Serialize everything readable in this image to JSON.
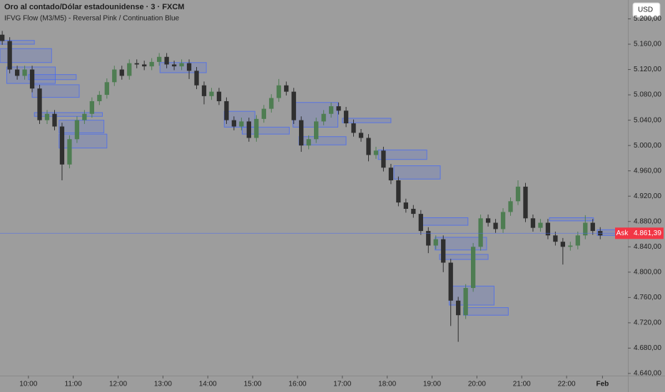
{
  "chart_data": {
    "type": "candlestick",
    "title": "Oro al contado/Dólar estadounidense · 3 · FXCM",
    "subtitle": "IFVG Flow (M3/M5) - Reversal Pink / Continuation Blue",
    "currency": "USD",
    "up_color": "#4e7d52",
    "down_color": "#2f2f2f",
    "zone_color": "#4a6cf0",
    "x": [
      565,
      575,
      585,
      595,
      605,
      615,
      625,
      635,
      645,
      655,
      665,
      675,
      685,
      695,
      705,
      715,
      725,
      735,
      745,
      755,
      765,
      775,
      785,
      795,
      805,
      815,
      825,
      835,
      845,
      855,
      865,
      875,
      885,
      895,
      905,
      915,
      925,
      935,
      945,
      955,
      965,
      975,
      985,
      995,
      1005,
      1015,
      1025,
      1035,
      1045,
      1055,
      1065,
      1075,
      1085,
      1095,
      1105,
      1115,
      1125,
      1135,
      1145,
      1155,
      1165,
      1175,
      1185,
      1195,
      1205,
      1215,
      1225,
      1235,
      1245,
      1255,
      1265,
      1275,
      1285,
      1295,
      1305,
      1315,
      1325,
      1335,
      1345,
      1355,
      1365
    ],
    "open": [
      5175,
      5165,
      5120,
      5110,
      5120,
      5090,
      5040,
      5050,
      5030,
      4970,
      5010,
      5040,
      5050,
      5070,
      5080,
      5100,
      5120,
      5110,
      5130,
      5128,
      5125,
      5132,
      5140,
      5128,
      5125,
      5130,
      5118,
      5095,
      5078,
      5085,
      5070,
      5040,
      5030,
      5038,
      5012,
      5042,
      5058,
      5075,
      5095,
      5085,
      5040,
      5000,
      5010,
      5038,
      5050,
      5062,
      5055,
      5035,
      5020,
      5012,
      4985,
      4992,
      4965,
      4945,
      4910,
      4900,
      4892,
      4865,
      4842,
      4852,
      4815,
      4755,
      4732,
      4775,
      4840,
      4885,
      4878,
      4868,
      4895,
      4912,
      4935,
      4885,
      4870,
      4878,
      4858,
      4848,
      4840,
      4842,
      4858,
      4878,
      4865
    ],
    "high": [
      5181,
      5171,
      5126,
      5126,
      5126,
      5096,
      5056,
      5056,
      5036,
      5016,
      5046,
      5056,
      5076,
      5086,
      5106,
      5126,
      5126,
      5136,
      5136,
      5134,
      5138,
      5146,
      5146,
      5134,
      5136,
      5136,
      5124,
      5101,
      5091,
      5091,
      5076,
      5046,
      5044,
      5044,
      5048,
      5064,
      5081,
      5105,
      5101,
      5091,
      5046,
      5016,
      5044,
      5056,
      5068,
      5068,
      5061,
      5041,
      5026,
      5018,
      4998,
      4998,
      4971,
      4951,
      4916,
      4906,
      4898,
      4871,
      4858,
      4858,
      4821,
      4761,
      4781,
      4846,
      4891,
      4891,
      4884,
      4901,
      4918,
      4945,
      4941,
      4891,
      4884,
      4884,
      4864,
      4854,
      4848,
      4864,
      4890,
      4884,
      4871
    ],
    "low": [
      5159,
      5114,
      5104,
      5104,
      5084,
      5034,
      5034,
      5024,
      4945,
      4964,
      5004,
      5034,
      5044,
      5064,
      5074,
      5094,
      5104,
      5104,
      5122,
      5119,
      5119,
      5126,
      5122,
      5119,
      5119,
      5105,
      5089,
      5065,
      5072,
      5064,
      5034,
      5024,
      5024,
      5006,
      5006,
      5036,
      5052,
      5069,
      5079,
      5034,
      4990,
      4994,
      5004,
      5032,
      5044,
      5049,
      5029,
      5014,
      5006,
      4975,
      4979,
      4959,
      4939,
      4904,
      4894,
      4886,
      4859,
      4830,
      4836,
      4800,
      4715,
      4690,
      4726,
      4769,
      4834,
      4872,
      4862,
      4862,
      4889,
      4906,
      4879,
      4864,
      4864,
      4852,
      4842,
      4812,
      4834,
      4836,
      4852,
      4859,
      4852
    ],
    "close": [
      5165,
      5120,
      5110,
      5120,
      5090,
      5040,
      5050,
      5030,
      4970,
      5010,
      5040,
      5050,
      5070,
      5080,
      5100,
      5120,
      5110,
      5130,
      5128,
      5125,
      5132,
      5140,
      5128,
      5125,
      5130,
      5118,
      5095,
      5078,
      5085,
      5070,
      5040,
      5030,
      5038,
      5012,
      5042,
      5058,
      5075,
      5095,
      5085,
      5040,
      5000,
      5010,
      5038,
      5050,
      5062,
      5055,
      5035,
      5020,
      5012,
      4985,
      4992,
      4965,
      4945,
      4910,
      4900,
      4892,
      4865,
      4842,
      4852,
      4815,
      4755,
      4732,
      4775,
      4840,
      4885,
      4878,
      4868,
      4895,
      4912,
      4935,
      4885,
      4870,
      4878,
      4858,
      4848,
      4840,
      4842,
      4858,
      4878,
      4865,
      4858
    ],
    "zones": [
      {
        "start": 562,
        "end": 608,
        "top": 5166,
        "bottom": 5160
      },
      {
        "start": 562,
        "end": 631,
        "top": 5153,
        "bottom": 5131
      },
      {
        "start": 571,
        "end": 636,
        "top": 5124,
        "bottom": 5098
      },
      {
        "start": 600,
        "end": 664,
        "top": 5112,
        "bottom": 5104
      },
      {
        "start": 605,
        "end": 668,
        "top": 5096,
        "bottom": 5076
      },
      {
        "start": 608,
        "end": 699,
        "top": 5052,
        "bottom": 5046
      },
      {
        "start": 641,
        "end": 701,
        "top": 5040,
        "bottom": 5020
      },
      {
        "start": 641,
        "end": 705,
        "top": 5018,
        "bottom": 4996
      },
      {
        "start": 776,
        "end": 838,
        "top": 5131,
        "bottom": 5115
      },
      {
        "start": 862,
        "end": 903,
        "top": 5054,
        "bottom": 5029
      },
      {
        "start": 886,
        "end": 949,
        "top": 5029,
        "bottom": 5018
      },
      {
        "start": 954,
        "end": 1014,
        "top": 5068,
        "bottom": 5029
      },
      {
        "start": 962,
        "end": 1025,
        "top": 5014,
        "bottom": 5001
      },
      {
        "start": 1020,
        "end": 1085,
        "top": 5043,
        "bottom": 5036
      },
      {
        "start": 1068,
        "end": 1133,
        "top": 4993,
        "bottom": 4978
      },
      {
        "start": 1089,
        "end": 1151,
        "top": 4968,
        "bottom": 4947
      },
      {
        "start": 1124,
        "end": 1188,
        "top": 4886,
        "bottom": 4874
      },
      {
        "start": 1144,
        "end": 1213,
        "top": 4855,
        "bottom": 4835
      },
      {
        "start": 1150,
        "end": 1215,
        "top": 4828,
        "bottom": 4820
      },
      {
        "start": 1163,
        "end": 1223,
        "top": 4778,
        "bottom": 4748
      },
      {
        "start": 1182,
        "end": 1242,
        "top": 4744,
        "bottom": 4732
      },
      {
        "start": 1297,
        "end": 1356,
        "top": 4886,
        "bottom": 4881
      },
      {
        "start": 1361,
        "end": 1401,
        "top": 4867,
        "bottom": 4858
      }
    ],
    "ask": {
      "label": "Ask",
      "value": 4861.39,
      "value_label": "4.861,39"
    },
    "xlim": [
      562,
      1402
    ],
    "xticks": [
      {
        "value": 600,
        "label": "10:00"
      },
      {
        "value": 660,
        "label": "11:00"
      },
      {
        "value": 720,
        "label": "12:00"
      },
      {
        "value": 780,
        "label": "13:00"
      },
      {
        "value": 840,
        "label": "14:00"
      },
      {
        "value": 900,
        "label": "15:00"
      },
      {
        "value": 960,
        "label": "16:00"
      },
      {
        "value": 1020,
        "label": "17:00"
      },
      {
        "value": 1080,
        "label": "18:00"
      },
      {
        "value": 1140,
        "label": "19:00"
      },
      {
        "value": 1200,
        "label": "20:00"
      },
      {
        "value": 1260,
        "label": "21:00"
      },
      {
        "value": 1320,
        "label": "22:00"
      },
      {
        "value": 1368,
        "label": "Feb"
      }
    ],
    "ylim": [
      4636.6,
      5229.8
    ],
    "yticks": [
      {
        "value": 4640,
        "label": "4.640,00"
      },
      {
        "value": 4680,
        "label": "4.680,00"
      },
      {
        "value": 4720,
        "label": "4.720,00"
      },
      {
        "value": 4760,
        "label": "4.760,00"
      },
      {
        "value": 4800,
        "label": "4.800,00"
      },
      {
        "value": 4840,
        "label": "4.840,00"
      },
      {
        "value": 4880,
        "label": "4.880,00"
      },
      {
        "value": 4920,
        "label": "4.920,00"
      },
      {
        "value": 4960,
        "label": "4.960,00"
      },
      {
        "value": 5000,
        "label": "5.000,00"
      },
      {
        "value": 5040,
        "label": "5.040,00"
      },
      {
        "value": 5080,
        "label": "5.080,00"
      },
      {
        "value": 5120,
        "label": "5.120,00"
      },
      {
        "value": 5160,
        "label": "5.160,00"
      },
      {
        "value": 5200,
        "label": "5.200,00"
      }
    ]
  }
}
